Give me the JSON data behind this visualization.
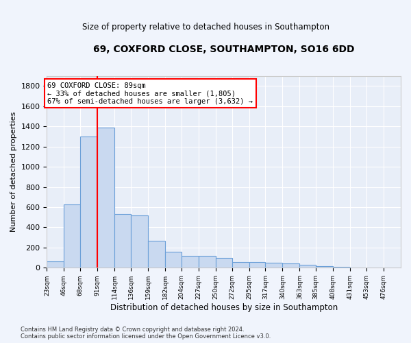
{
  "title": "69, COXFORD CLOSE, SOUTHAMPTON, SO16 6DD",
  "subtitle": "Size of property relative to detached houses in Southampton",
  "xlabel": "Distribution of detached houses by size in Southampton",
  "ylabel": "Number of detached properties",
  "bar_color": "#c9d9f0",
  "bar_edge_color": "#6a9fd8",
  "bg_color": "#e8eef8",
  "grid_color": "#ffffff",
  "fig_bg_color": "#f0f4fc",
  "property_line_x": 91,
  "annotation_text": "69 COXFORD CLOSE: 89sqm\n← 33% of detached houses are smaller (1,805)\n67% of semi-detached houses are larger (3,632) →",
  "footer": "Contains HM Land Registry data © Crown copyright and database right 2024.\nContains public sector information licensed under the Open Government Licence v3.0.",
  "bin_edges": [
    23,
    46,
    68,
    91,
    114,
    136,
    159,
    182,
    204,
    227,
    250,
    272,
    295,
    317,
    340,
    363,
    385,
    408,
    431,
    453,
    476,
    499
  ],
  "bar_heights": [
    65,
    630,
    1300,
    1390,
    530,
    520,
    270,
    160,
    120,
    120,
    95,
    60,
    55,
    50,
    40,
    30,
    15,
    8,
    5,
    2,
    2
  ],
  "ylim": [
    0,
    1900
  ],
  "yticks": [
    0,
    200,
    400,
    600,
    800,
    1000,
    1200,
    1400,
    1600,
    1800
  ]
}
